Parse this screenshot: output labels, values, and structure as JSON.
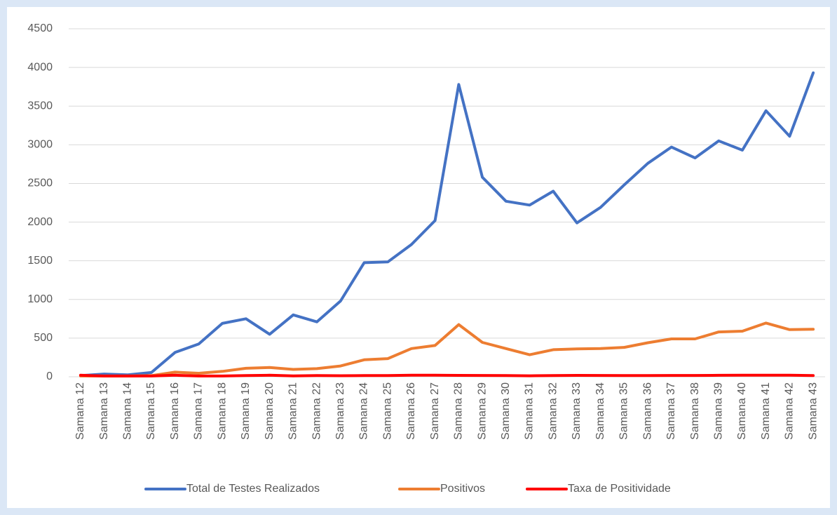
{
  "chart_data": {
    "type": "line",
    "categories": [
      "Samana 12",
      "Samana 13",
      "Samana 14",
      "Samana 15",
      "Samana 16",
      "Samana 17",
      "Samana 18",
      "Samana 19",
      "Samana 20",
      "Samana 21",
      "Samana 22",
      "Samana 23",
      "Samana 24",
      "Samana 25",
      "Samana 26",
      "Samana 27",
      "Samana 28",
      "Samana 29",
      "Samana 30",
      "Samana 31",
      "Samana 32",
      "Samana 33",
      "Samana 34",
      "Samana 35",
      "Samana 36",
      "Samana 37",
      "Samana 38",
      "Samana 39",
      "Samana 40",
      "Samana 41",
      "Samana 42",
      "Samana 43"
    ],
    "series": [
      {
        "name": "Total de Testes Realizados",
        "color": "#4472c4",
        "values": [
          15,
          35,
          25,
          55,
          315,
          425,
          690,
          750,
          550,
          800,
          710,
          980,
          1475,
          1485,
          1710,
          2020,
          3780,
          2580,
          2270,
          2220,
          2400,
          1990,
          2190,
          2480,
          2760,
          2970,
          2830,
          3050,
          2930,
          3440,
          3110,
          3930
        ]
      },
      {
        "name": "Positivos",
        "color": "#ed7d31",
        "values": [
          10,
          10,
          10,
          15,
          60,
          45,
          70,
          110,
          120,
          95,
          105,
          140,
          220,
          235,
          365,
          405,
          675,
          445,
          365,
          285,
          350,
          360,
          365,
          380,
          440,
          490,
          490,
          580,
          590,
          695,
          610,
          615
        ]
      },
      {
        "name": "Taxa de Positividade",
        "color": "#ff0000",
        "values": [
          20,
          10,
          10,
          10,
          20,
          10,
          10,
          15,
          20,
          12,
          15,
          14,
          15,
          16,
          21,
          20,
          18,
          17,
          16,
          13,
          15,
          18,
          17,
          15,
          16,
          17,
          17,
          19,
          20,
          20,
          20,
          16
        ]
      }
    ],
    "ylim": [
      0,
      4500
    ],
    "yticks": [
      0,
      500,
      1000,
      1500,
      2000,
      2500,
      3000,
      3500,
      4000,
      4500
    ],
    "grid": true,
    "legend": "bottom"
  }
}
